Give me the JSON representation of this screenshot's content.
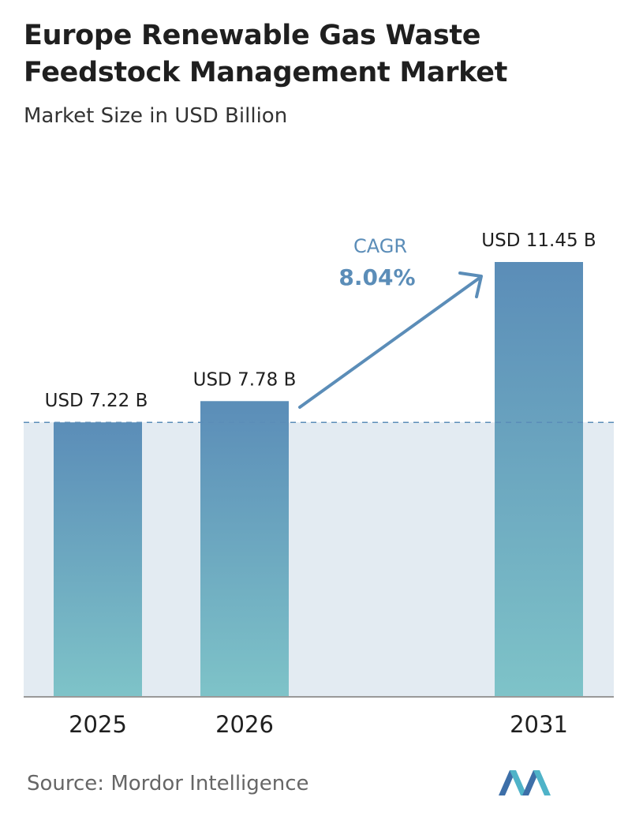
{
  "header": {
    "title": "Europe Renewable Gas Waste Feedstock Management Market",
    "subtitle": "Market Size in USD Billion"
  },
  "chart_data": {
    "type": "bar",
    "categories": [
      "2025",
      "2026",
      "2031"
    ],
    "values": [
      7.22,
      7.78,
      11.45
    ],
    "data_labels": [
      "USD 7.22 B",
      "USD 7.78 B",
      "USD 11.45 B"
    ],
    "title": "Europe Renewable Gas Waste Feedstock Management Market",
    "subtitle": "Market Size in USD Billion",
    "xlabel": "",
    "ylabel": "",
    "ylim": [
      0,
      11.45
    ],
    "grid": false,
    "annotation": {
      "label": "CAGR",
      "value": "8.04%"
    },
    "colors": {
      "bar_top": "#5b8db8",
      "bar_bottom": "#7ec3c8",
      "band": "#e3ebf2",
      "arrow": "#5b8db8",
      "baseline": "#999999"
    }
  },
  "footer": {
    "source": "Source:  Mordor Intelligence",
    "logo": "mordor-intelligence-logo"
  }
}
